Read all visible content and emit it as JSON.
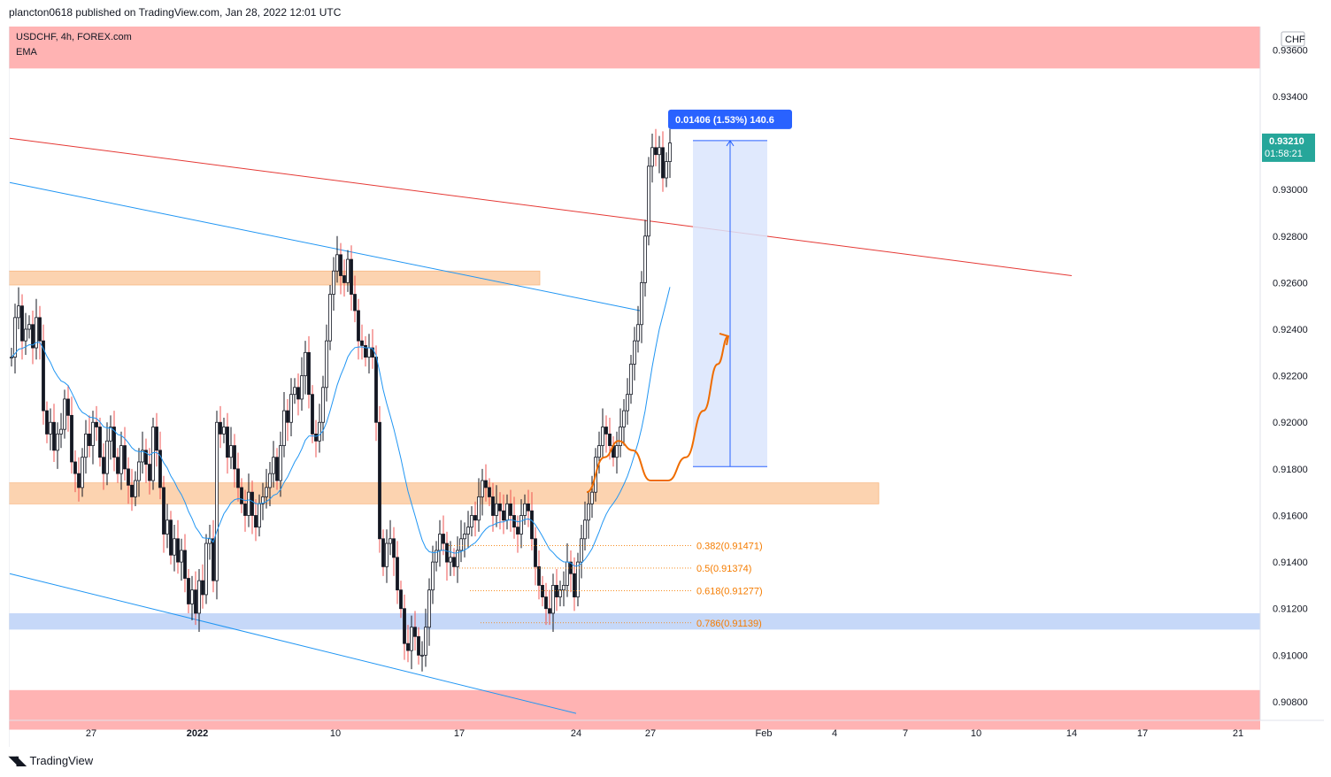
{
  "header": {
    "published": "plancton0618 published on TradingView.com, Jan 28, 2022 12:01 UTC"
  },
  "footer": {
    "logo": "TradingView",
    "logo_icon": "tradingview-logo-icon"
  },
  "chart_info": {
    "symbol_line": "USDCHF, 4h, FOREX.com",
    "indicator": "EMA",
    "currency": "CHF"
  },
  "price_tag": {
    "price": "0.93210",
    "countdown": "01:58:21"
  },
  "measure_label": "0.01406 (1.53%) 140.6",
  "colors": {
    "up": "#26a69a",
    "down": "#ef5350",
    "candle": "#131722",
    "ema": "#2196f3",
    "red_trend": "#e53935",
    "blue_trend": "#2196f3",
    "resistance_zone": "#ffb3b3",
    "orange_zone": "#fcd3b0",
    "blue_zone": "#c6d8f8",
    "fib": "#f57c00",
    "measure": "#2962ff",
    "path": "#ef6c00"
  },
  "chart_data": {
    "type": "candlestick",
    "title": "USDCHF, 4h, FOREX.com",
    "ylim": [
      0.9072,
      0.937
    ],
    "yticks": [
      "0.93400",
      "0.93000",
      "0.92800",
      "0.92600",
      "0.92400",
      "0.92200",
      "0.92000",
      "0.91800",
      "0.91600",
      "0.91400",
      "0.91200",
      "0.91000",
      "0.90800"
    ],
    "ytick_values": [
      0.934,
      0.93,
      0.928,
      0.926,
      0.924,
      0.922,
      0.92,
      0.918,
      0.916,
      0.914,
      0.912,
      0.91,
      0.908
    ],
    "top_partial_tick": "0.93600",
    "xticks": [
      "27",
      "2022",
      "10",
      "17",
      "24",
      "27",
      "Feb",
      "4",
      "7",
      "10",
      "14",
      "17",
      "21"
    ],
    "xtick_bar_index": [
      23,
      53,
      92,
      127,
      160,
      181,
      213,
      233,
      253,
      273,
      300,
      320,
      347
    ],
    "bar_step": 4,
    "closes": [
      0.9228,
      0.9245,
      0.925,
      0.9235,
      0.924,
      0.9242,
      0.9232,
      0.9245,
      0.9235,
      0.9205,
      0.9195,
      0.92,
      0.9188,
      0.9195,
      0.9197,
      0.921,
      0.9203,
      0.9183,
      0.9178,
      0.9172,
      0.9185,
      0.9195,
      0.919,
      0.92,
      0.9198,
      0.9185,
      0.9178,
      0.9192,
      0.9198,
      0.9185,
      0.9178,
      0.919,
      0.918,
      0.9173,
      0.9168,
      0.9175,
      0.9183,
      0.9188,
      0.9182,
      0.9175,
      0.9198,
      0.9188,
      0.9172,
      0.9152,
      0.9158,
      0.9143,
      0.915,
      0.914,
      0.9145,
      0.9133,
      0.9122,
      0.9128,
      0.9118,
      0.9132,
      0.9126,
      0.9148,
      0.915,
      0.9132,
      0.92,
      0.9195,
      0.9198,
      0.9185,
      0.919,
      0.918,
      0.9172,
      0.9165,
      0.916,
      0.917,
      0.916,
      0.9155,
      0.9165,
      0.9168,
      0.9172,
      0.9178,
      0.9185,
      0.9175,
      0.919,
      0.9205,
      0.92,
      0.9212,
      0.9215,
      0.921,
      0.922,
      0.923,
      0.9212,
      0.9195,
      0.9192,
      0.92,
      0.9215,
      0.9235,
      0.9255,
      0.9265,
      0.9272,
      0.9263,
      0.926,
      0.927,
      0.9255,
      0.9248,
      0.9235,
      0.9233,
      0.9228,
      0.9232,
      0.9228,
      0.92,
      0.915,
      0.9138,
      0.9148,
      0.915,
      0.9142,
      0.9128,
      0.912,
      0.9105,
      0.9102,
      0.9112,
      0.9108,
      0.91,
      0.91,
      0.9112,
      0.9128,
      0.914,
      0.9145,
      0.9152,
      0.9148,
      0.914,
      0.9142,
      0.9138,
      0.9145,
      0.915,
      0.9152,
      0.9155,
      0.916,
      0.9158,
      0.9168,
      0.9175,
      0.9172,
      0.9168,
      0.916,
      0.9165,
      0.9162,
      0.9158,
      0.9165,
      0.916,
      0.9155,
      0.9152,
      0.916,
      0.9165,
      0.9162,
      0.915,
      0.9138,
      0.913,
      0.9125,
      0.912,
      0.9118,
      0.913,
      0.9125,
      0.9128,
      0.913,
      0.914,
      0.9135,
      0.9125,
      0.914,
      0.915,
      0.9158,
      0.9165,
      0.917,
      0.9185,
      0.919,
      0.9198,
      0.9195,
      0.919,
      0.9185,
      0.919,
      0.9198,
      0.9205,
      0.9212,
      0.9225,
      0.9235,
      0.9242,
      0.926,
      0.928,
      0.931,
      0.9318,
      0.9315,
      0.9318,
      0.9305,
      0.9312,
      0.932
    ],
    "annotations": {
      "red_zone_top": [
        0.9372,
        0.9352
      ],
      "red_zone_bottom": [
        0.9085,
        0.9068
      ],
      "orange_zone_upper": [
        0.9265,
        0.9259
      ],
      "orange_zone_middle": [
        0.9174,
        0.9165
      ],
      "blue_zone": [
        0.9118,
        0.9111
      ],
      "fib_levels": [
        {
          "label": "0.382(0.91471)",
          "value": 0.91471
        },
        {
          "label": "0.5(0.91374)",
          "value": 0.91374
        },
        {
          "label": "0.618(0.91277)",
          "value": 0.91277
        },
        {
          "label": "0.786(0.91139)",
          "value": 0.91139
        }
      ],
      "red_trendline": {
        "x": [
          0,
          300
        ],
        "y": [
          0.9322,
          0.9263
        ]
      },
      "blue_trendline_upper": {
        "x": [
          0,
          178
        ],
        "y": [
          0.9303,
          0.9248
        ]
      },
      "blue_trendline_lower": {
        "x": [
          0,
          160
        ],
        "y": [
          0.9135,
          0.9075
        ]
      },
      "measure": {
        "x": [
          193,
          214
        ],
        "y": [
          0.9181,
          0.9321
        ]
      },
      "projection_path": {
        "x": [
          163,
          168,
          172,
          176,
          181,
          186,
          191,
          196,
          200,
          203
        ],
        "y": [
          0.917,
          0.9185,
          0.9192,
          0.9188,
          0.9175,
          0.9175,
          0.9185,
          0.9205,
          0.9225,
          0.9237
        ]
      }
    }
  }
}
